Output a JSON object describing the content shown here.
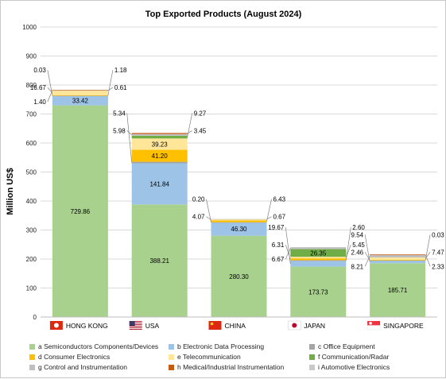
{
  "chart_data": {
    "type": "bar",
    "stacked": true,
    "title": "Top Exported Products (August 2024)",
    "xlabel": "",
    "ylabel": "Million US$",
    "ylim": [
      0,
      1000
    ],
    "yticks": [
      0,
      100,
      200,
      300,
      400,
      500,
      600,
      700,
      800,
      900,
      1000
    ],
    "grid": true,
    "legend_position": "bottom",
    "categories": [
      "HONG KONG",
      "USA",
      "CHINA",
      "JAPAN",
      "SINGAPORE"
    ],
    "category_flags": [
      "hong-kong-flag-icon",
      "usa-flag-icon",
      "china-flag-icon",
      "japan-flag-icon",
      "singapore-flag-icon"
    ],
    "series": [
      {
        "name": "a Semiconductors Components/Devices",
        "color": "#a9d18e",
        "values": [
          729.86,
          388.21,
          280.3,
          173.73,
          185.71
        ],
        "labels": [
          "729.86",
          "388.21",
          "280.30",
          "173.73",
          "185.71"
        ]
      },
      {
        "name": "b Electronic Data Processing",
        "color": "#9dc3e6",
        "values": [
          33.42,
          141.84,
          46.3,
          19.67,
          9.54
        ],
        "labels": [
          "33.42",
          "141.84",
          "46.30",
          "19.67",
          "9.54"
        ]
      },
      {
        "name": "c Office Equipment",
        "color": "#a5a5a5",
        "values": [
          0.03,
          5.34,
          0.2,
          2.6,
          0.03
        ],
        "labels": [
          "0.03",
          "5.34",
          "0.20",
          "2.60",
          "0.03"
        ]
      },
      {
        "name": "d Consumer Electronics",
        "color": "#ffc000",
        "values": [
          1.18,
          41.2,
          6.43,
          6.31,
          2.46
        ],
        "labels": [
          "1.18",
          "41.20",
          "6.43",
          "6.31",
          "2.46"
        ]
      },
      {
        "name": "e Telecommunication",
        "color": "#ffe699",
        "values": [
          16.67,
          39.23,
          4.07,
          5.45,
          7.47
        ],
        "labels": [
          "16.67",
          "39.23",
          "4.07",
          "5.45",
          "7.47"
        ]
      },
      {
        "name": "f Communication/Radar",
        "color": "#70ad47",
        "values": [
          0.0,
          9.27,
          0.0,
          26.35,
          0.0
        ],
        "labels": [
          "",
          "9.27",
          "",
          "26.35",
          ""
        ]
      },
      {
        "name": "g Control and Instrumentation",
        "color": "#bfbfbf",
        "values": [
          0.61,
          5.98,
          0.67,
          6.67,
          8.21
        ],
        "labels": [
          "0.61",
          "5.98",
          "0.67",
          "6.67",
          "8.21"
        ]
      },
      {
        "name": "h Medical/Industrial Instrumentation",
        "color": "#c55a11",
        "values": [
          1.4,
          3.45,
          0.0,
          0.0,
          2.33
        ],
        "labels": [
          "1.40",
          "3.45",
          "",
          "",
          "2.33"
        ]
      },
      {
        "name": "i Automotive Electronics",
        "color": "#c9c9c9",
        "values": [
          0.0,
          0.0,
          0.0,
          0.0,
          0.0
        ],
        "labels": [
          "",
          "",
          "",
          "",
          ""
        ]
      }
    ]
  }
}
